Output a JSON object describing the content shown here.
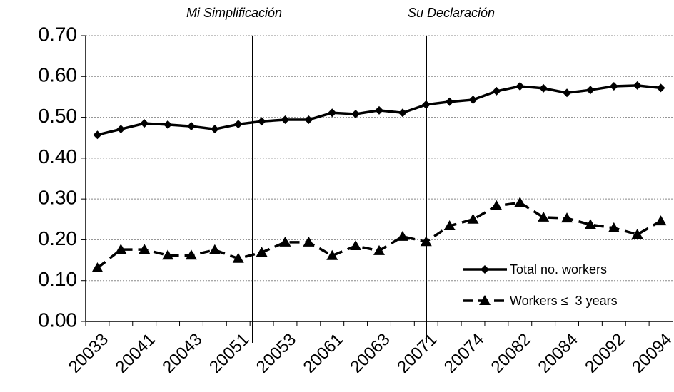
{
  "chart_data": {
    "type": "line",
    "annotations": [
      "Mi Simplificación",
      "Su Declaración"
    ],
    "categories": [
      "20033",
      null,
      "20041",
      null,
      "20043",
      null,
      "20051",
      null,
      "20053",
      null,
      "20061",
      null,
      "20063",
      null,
      "20071",
      null,
      "20074",
      null,
      "20082",
      null,
      "20084",
      null,
      "20092",
      null,
      "20094"
    ],
    "series": [
      {
        "name": "Total no. workers",
        "color": "#000000",
        "dash": false,
        "marker": "diamond",
        "values": [
          0.457,
          0.471,
          0.485,
          0.482,
          0.478,
          0.471,
          0.483,
          0.49,
          0.494,
          0.494,
          0.511,
          0.508,
          0.517,
          0.511,
          0.531,
          0.538,
          0.543,
          0.564,
          0.576,
          0.571,
          0.56,
          0.567,
          0.576,
          0.578,
          0.572
        ]
      },
      {
        "name": "Workers ≤  3 years",
        "color": "#000000",
        "dash": true,
        "marker": "triangle",
        "values": [
          0.131,
          0.176,
          0.176,
          0.162,
          0.162,
          0.175,
          0.154,
          0.169,
          0.194,
          0.194,
          0.161,
          0.185,
          0.173,
          0.208,
          0.195,
          0.234,
          0.25,
          0.283,
          0.291,
          0.255,
          0.253,
          0.237,
          0.229,
          0.213,
          0.246
        ]
      }
    ],
    "ylim": [
      0,
      0.7
    ],
    "yticks": [
      {
        "value": 0,
        "label": "0.00"
      },
      {
        "value": 0.1,
        "label": "0.10"
      },
      {
        "value": 0.2,
        "label": "0.20"
      },
      {
        "value": 0.3,
        "label": "0.30"
      },
      {
        "value": 0.4,
        "label": "0.40"
      },
      {
        "value": 0.5,
        "label": "0.50"
      },
      {
        "value": 0.6,
        "label": "0.60"
      },
      {
        "value": 0.7,
        "label": "0.70"
      }
    ],
    "grid": true,
    "legend": "lower right"
  }
}
